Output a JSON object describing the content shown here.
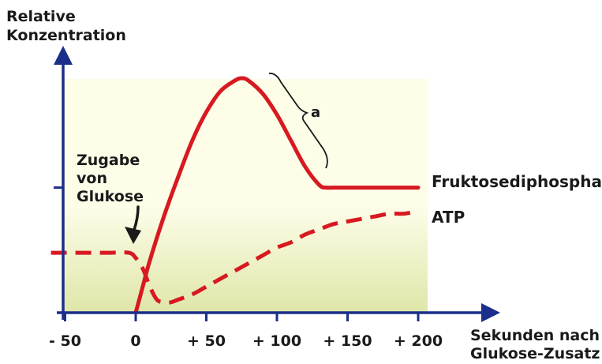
{
  "chart_data": {
    "type": "line",
    "ylabel_lines": [
      "Relative",
      "Konzentration"
    ],
    "xlabel_lines": [
      "Sekunden nach",
      "Glukose-Zusatz"
    ],
    "x_ticks": [
      {
        "value": -50,
        "label": "- 50"
      },
      {
        "value": 0,
        "label": "0"
      },
      {
        "value": 50,
        "label": "+ 50"
      },
      {
        "value": 100,
        "label": "+ 100"
      },
      {
        "value": 150,
        "label": "+ 150"
      },
      {
        "value": 200,
        "label": "+ 200"
      }
    ],
    "xlim": [
      -60,
      210
    ],
    "ylim": [
      0,
      1
    ],
    "y_ticks": [
      0.23,
      0.48
    ],
    "annotation_lines": [
      "Zugabe",
      "von",
      "Glukose"
    ],
    "annotation_x": 0,
    "brace_label": "a",
    "series": [
      {
        "name": "Fruktosediphosphat",
        "style": "solid",
        "color": "#d71920",
        "x": [
          0,
          5,
          10,
          20,
          30,
          40,
          50,
          60,
          70,
          75,
          80,
          90,
          100,
          110,
          120,
          130,
          135,
          140,
          150,
          175,
          200
        ],
        "y": [
          0.0,
          0.1,
          0.2,
          0.37,
          0.52,
          0.66,
          0.77,
          0.85,
          0.89,
          0.9,
          0.89,
          0.84,
          0.76,
          0.66,
          0.56,
          0.49,
          0.48,
          0.48,
          0.48,
          0.48,
          0.48
        ]
      },
      {
        "name": "ATP",
        "style": "dashed",
        "color": "#d71920",
        "x": [
          -60,
          -40,
          -20,
          -5,
          0,
          5,
          10,
          15,
          20,
          25,
          30,
          40,
          50,
          60,
          70,
          80,
          90,
          100,
          110,
          120,
          130,
          140,
          150,
          160,
          170,
          180,
          190,
          200
        ],
        "y": [
          0.23,
          0.23,
          0.23,
          0.23,
          0.21,
          0.17,
          0.1,
          0.05,
          0.04,
          0.04,
          0.05,
          0.07,
          0.1,
          0.13,
          0.16,
          0.19,
          0.22,
          0.25,
          0.27,
          0.3,
          0.32,
          0.34,
          0.35,
          0.36,
          0.37,
          0.38,
          0.38,
          0.39
        ]
      }
    ]
  },
  "colors": {
    "axis": "#1a2e8a",
    "curve": "#d71920",
    "bg_top": "#fdfde8",
    "bg_bottom": "#dfe6a8",
    "text": "#1a1a1a"
  }
}
